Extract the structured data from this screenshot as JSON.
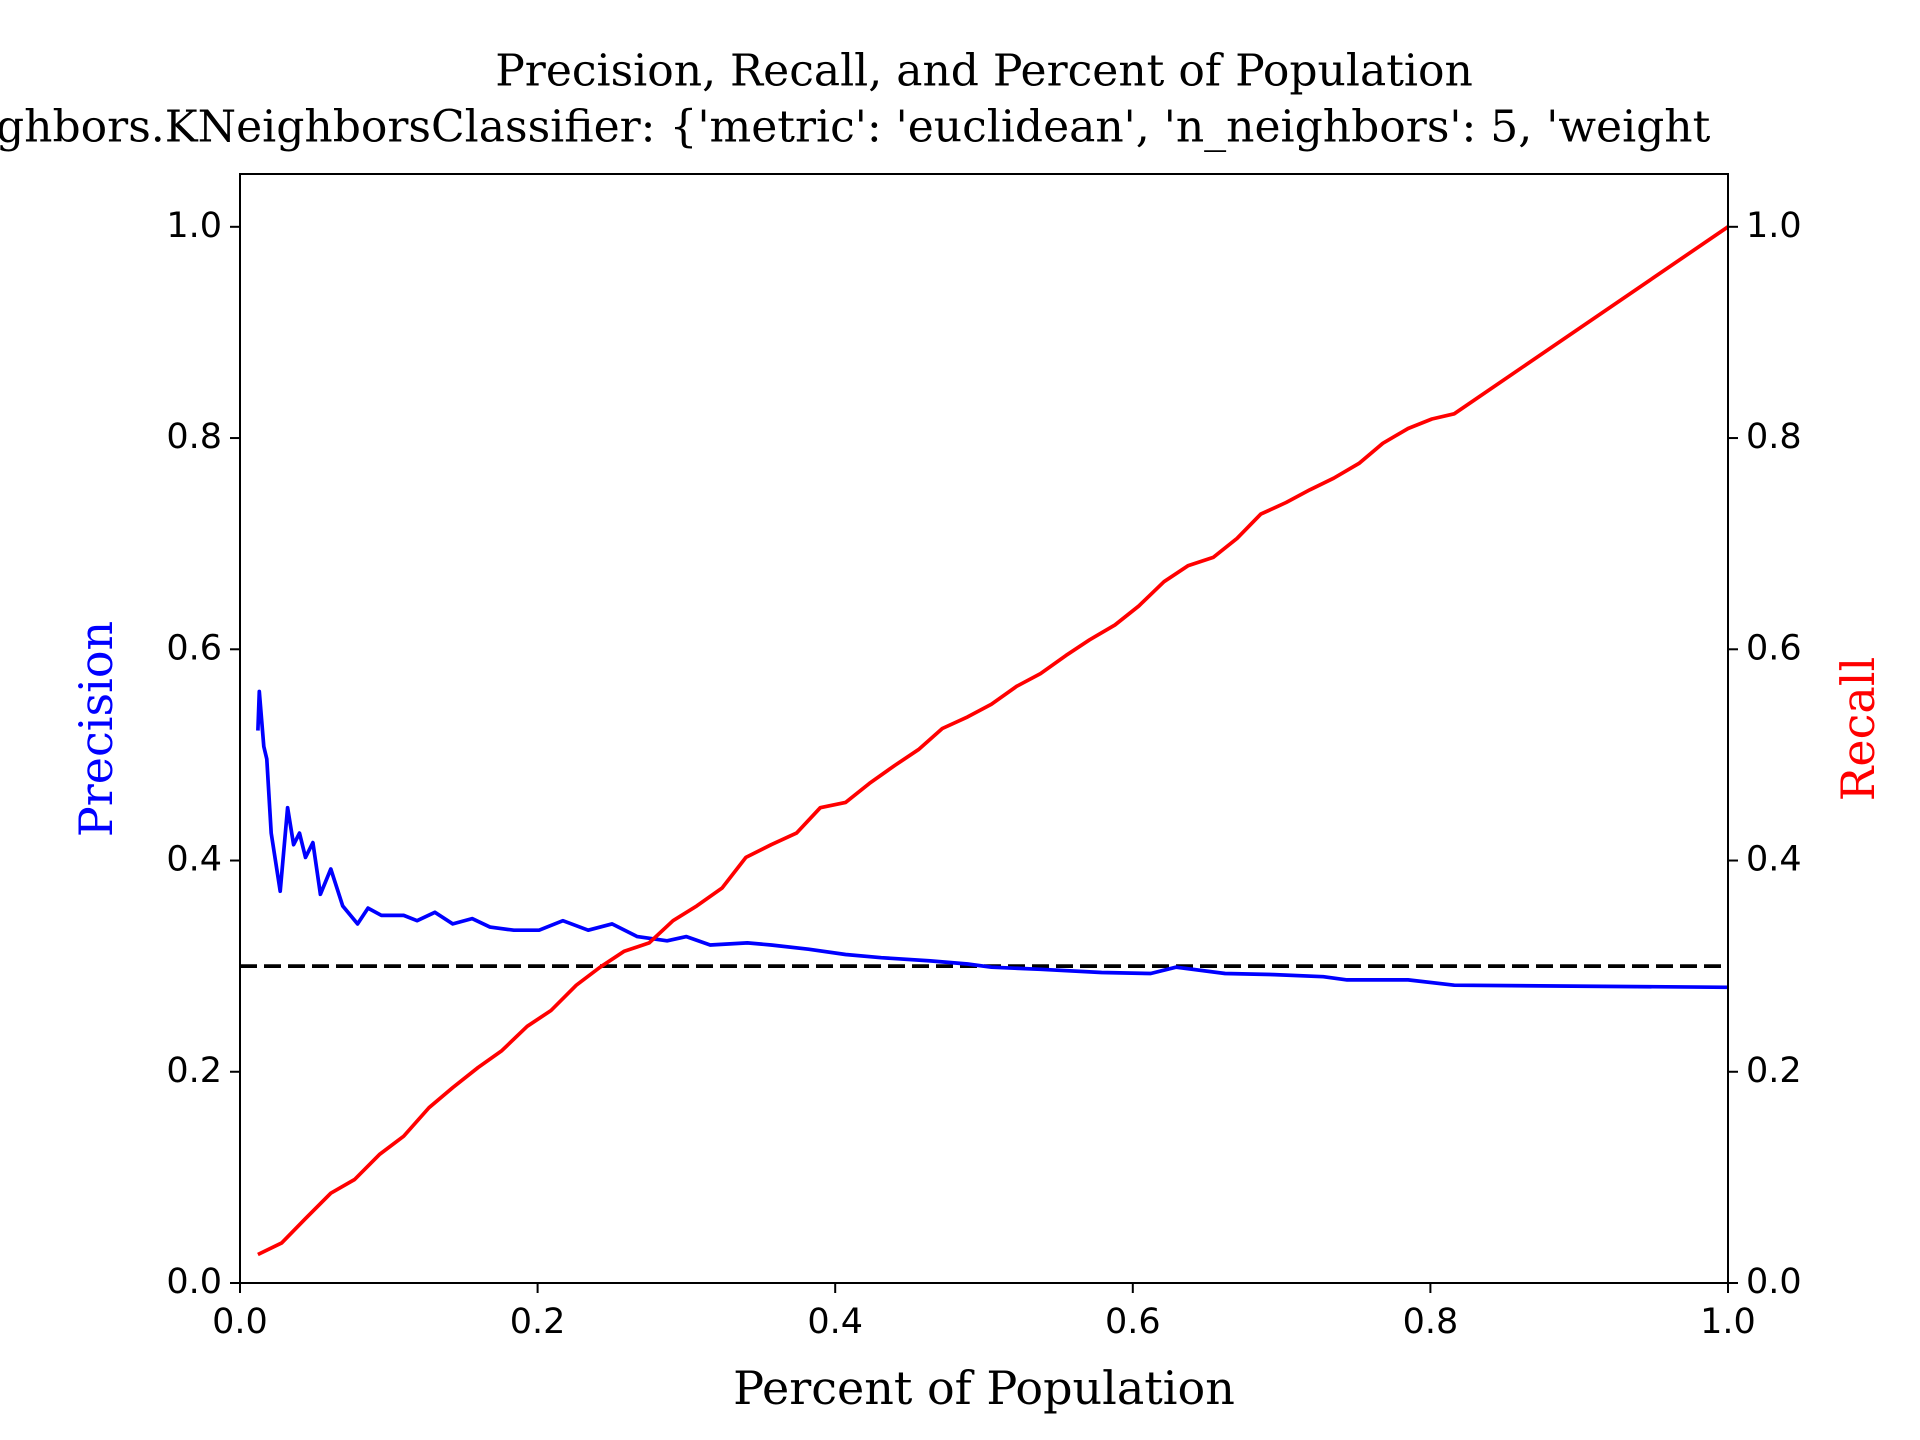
{
  "chart_data": {
    "type": "line",
    "title": "Precision, Recall, and Percent of Population",
    "subtitle": "ghbors.KNeighborsClassifier: {'metric': 'euclidean', 'n_neighbors': 5, 'weight",
    "x_label": "Percent of Population",
    "y_label": "Precision",
    "y2_label": "Recall",
    "y_label_color": "#0000ff",
    "y2_label_color": "#ff0000",
    "xlim": [
      0,
      1
    ],
    "xticks": [
      {
        "value": 0,
        "label": "0.0"
      },
      0.2,
      0.4,
      0.6,
      0.8,
      {
        "value": 1,
        "label": "1.0"
      }
    ],
    "ylim": [
      0,
      1.05
    ],
    "yticks": [
      {
        "value": 0,
        "label": "0.0"
      },
      0.2,
      0.4,
      0.6,
      0.8,
      {
        "value": 1,
        "label": "1.0"
      }
    ],
    "y2lim": [
      0,
      1.05
    ],
    "y2ticks": [
      {
        "value": 0,
        "label": "0.0"
      },
      0.2,
      0.4,
      0.6,
      0.8,
      {
        "value": 1,
        "label": "1.0"
      }
    ],
    "grid": false,
    "hline": {
      "value": 0.3,
      "color": "#000000",
      "style": "dashed"
    },
    "series": [
      {
        "name": "Precision",
        "color": "#0000ff",
        "axis": "y",
        "x": [
          0.012,
          0.013,
          0.016,
          0.018,
          0.021,
          0.027,
          0.032,
          0.036,
          0.04,
          0.044,
          0.049,
          0.054,
          0.061,
          0.069,
          0.079,
          0.086,
          0.095,
          0.11,
          0.119,
          0.131,
          0.143,
          0.156,
          0.168,
          0.184,
          0.201,
          0.217,
          0.234,
          0.25,
          0.267,
          0.287,
          0.3,
          0.316,
          0.341,
          0.357,
          0.382,
          0.407,
          0.431,
          0.464,
          0.489,
          0.505,
          0.538,
          0.579,
          0.612,
          0.629,
          0.662,
          0.695,
          0.728,
          0.744,
          0.785,
          0.816,
          1.0
        ],
        "values": [
          0.523,
          0.56,
          0.508,
          0.496,
          0.426,
          0.371,
          0.45,
          0.415,
          0.426,
          0.403,
          0.417,
          0.368,
          0.392,
          0.357,
          0.34,
          0.355,
          0.348,
          0.348,
          0.343,
          0.351,
          0.34,
          0.345,
          0.337,
          0.334,
          0.334,
          0.343,
          0.334,
          0.34,
          0.328,
          0.324,
          0.328,
          0.32,
          0.322,
          0.32,
          0.316,
          0.311,
          0.308,
          0.305,
          0.302,
          0.299,
          0.297,
          0.294,
          0.293,
          0.299,
          0.293,
          0.292,
          0.29,
          0.287,
          0.287,
          0.282,
          0.28
        ]
      },
      {
        "name": "Recall",
        "color": "#ff0000",
        "axis": "y2",
        "x": [
          0.012,
          0.028,
          0.044,
          0.061,
          0.077,
          0.094,
          0.11,
          0.127,
          0.143,
          0.16,
          0.176,
          0.193,
          0.209,
          0.226,
          0.242,
          0.258,
          0.275,
          0.291,
          0.307,
          0.324,
          0.34,
          0.357,
          0.374,
          0.39,
          0.407,
          0.423,
          0.44,
          0.456,
          0.472,
          0.489,
          0.505,
          0.522,
          0.538,
          0.555,
          0.571,
          0.588,
          0.604,
          0.621,
          0.637,
          0.654,
          0.67,
          0.686,
          0.703,
          0.719,
          0.735,
          0.752,
          0.768,
          0.785,
          0.801,
          0.816,
          1.0
        ],
        "values": [
          0.027,
          0.038,
          0.061,
          0.085,
          0.098,
          0.122,
          0.139,
          0.166,
          0.185,
          0.204,
          0.22,
          0.243,
          0.258,
          0.282,
          0.299,
          0.314,
          0.322,
          0.343,
          0.357,
          0.374,
          0.403,
          0.415,
          0.426,
          0.45,
          0.455,
          0.473,
          0.49,
          0.505,
          0.525,
          0.536,
          0.548,
          0.565,
          0.577,
          0.594,
          0.609,
          0.623,
          0.641,
          0.664,
          0.679,
          0.687,
          0.705,
          0.728,
          0.739,
          0.751,
          0.762,
          0.776,
          0.795,
          0.809,
          0.818,
          0.823,
          1.0
        ]
      }
    ]
  }
}
